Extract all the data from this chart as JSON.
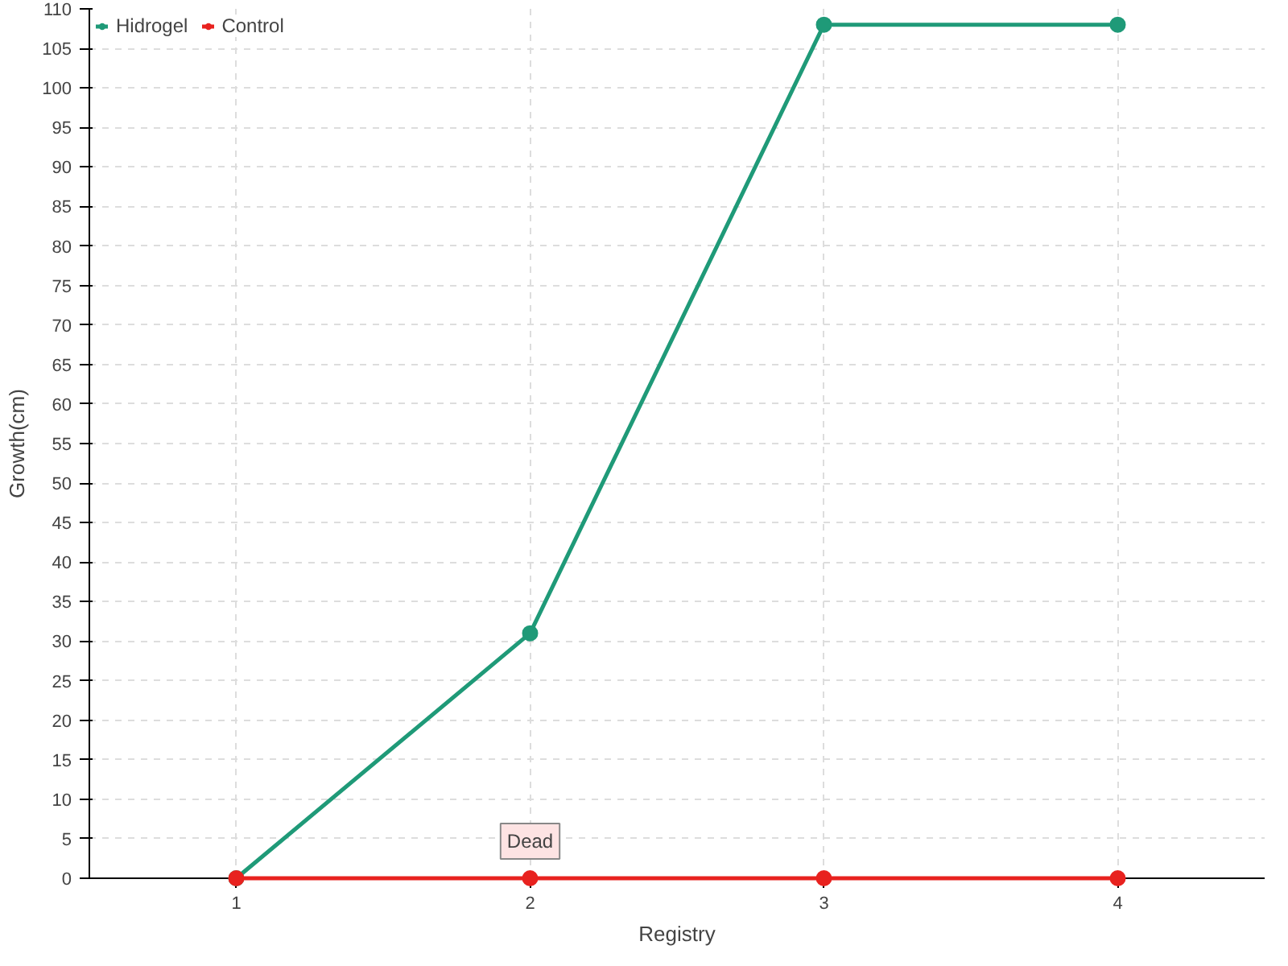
{
  "chart_data": {
    "type": "line",
    "xlabel": "Registry",
    "ylabel": "Growth(cm)",
    "categories": [
      "1",
      "2",
      "3",
      "4"
    ],
    "series": [
      {
        "name": "Hidrogel",
        "color": "#1f9a78",
        "values": [
          0,
          31,
          108,
          108
        ]
      },
      {
        "name": "Control",
        "color": "#e8221f",
        "values": [
          0,
          0,
          0,
          0
        ]
      }
    ],
    "ylim": [
      0,
      110
    ],
    "yticks": [
      0,
      5,
      10,
      15,
      20,
      25,
      30,
      35,
      40,
      45,
      50,
      55,
      60,
      65,
      70,
      75,
      80,
      85,
      90,
      95,
      100,
      105,
      110
    ],
    "grid": true,
    "legend": "top left",
    "marker": "circle",
    "line_style": "solid",
    "annotations": [
      {
        "text": "Dead",
        "x": "2",
        "y": 0
      }
    ]
  }
}
